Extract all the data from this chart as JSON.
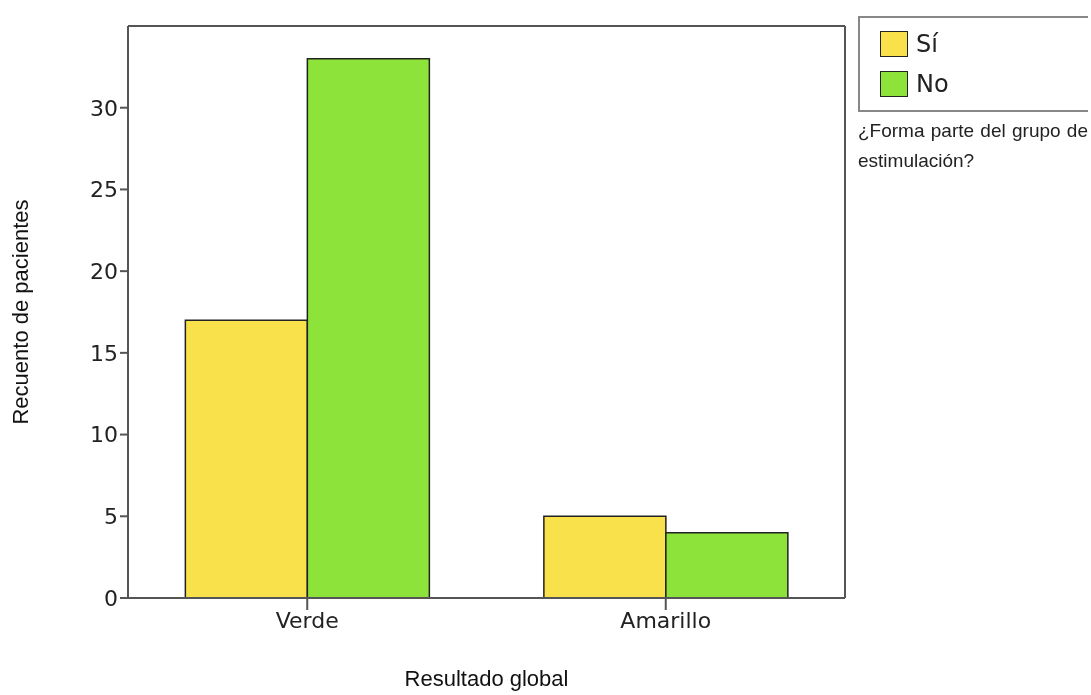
{
  "chart_data": {
    "type": "bar",
    "xlabel": "Resultado global",
    "ylabel": "Recuento de pacientes",
    "legend_title": "¿Forma parte del grupo de estimulación?",
    "categories": [
      "Verde",
      "Amarillo"
    ],
    "series": [
      {
        "name": "Sí",
        "color": "#f9e14b",
        "values": [
          17,
          5
        ]
      },
      {
        "name": "No",
        "color": "#8ee33a",
        "values": [
          33,
          4
        ]
      }
    ],
    "ylim": [
      0,
      35
    ],
    "yticks": [
      0,
      5,
      10,
      15,
      20,
      25,
      30
    ],
    "legend": "top right"
  }
}
